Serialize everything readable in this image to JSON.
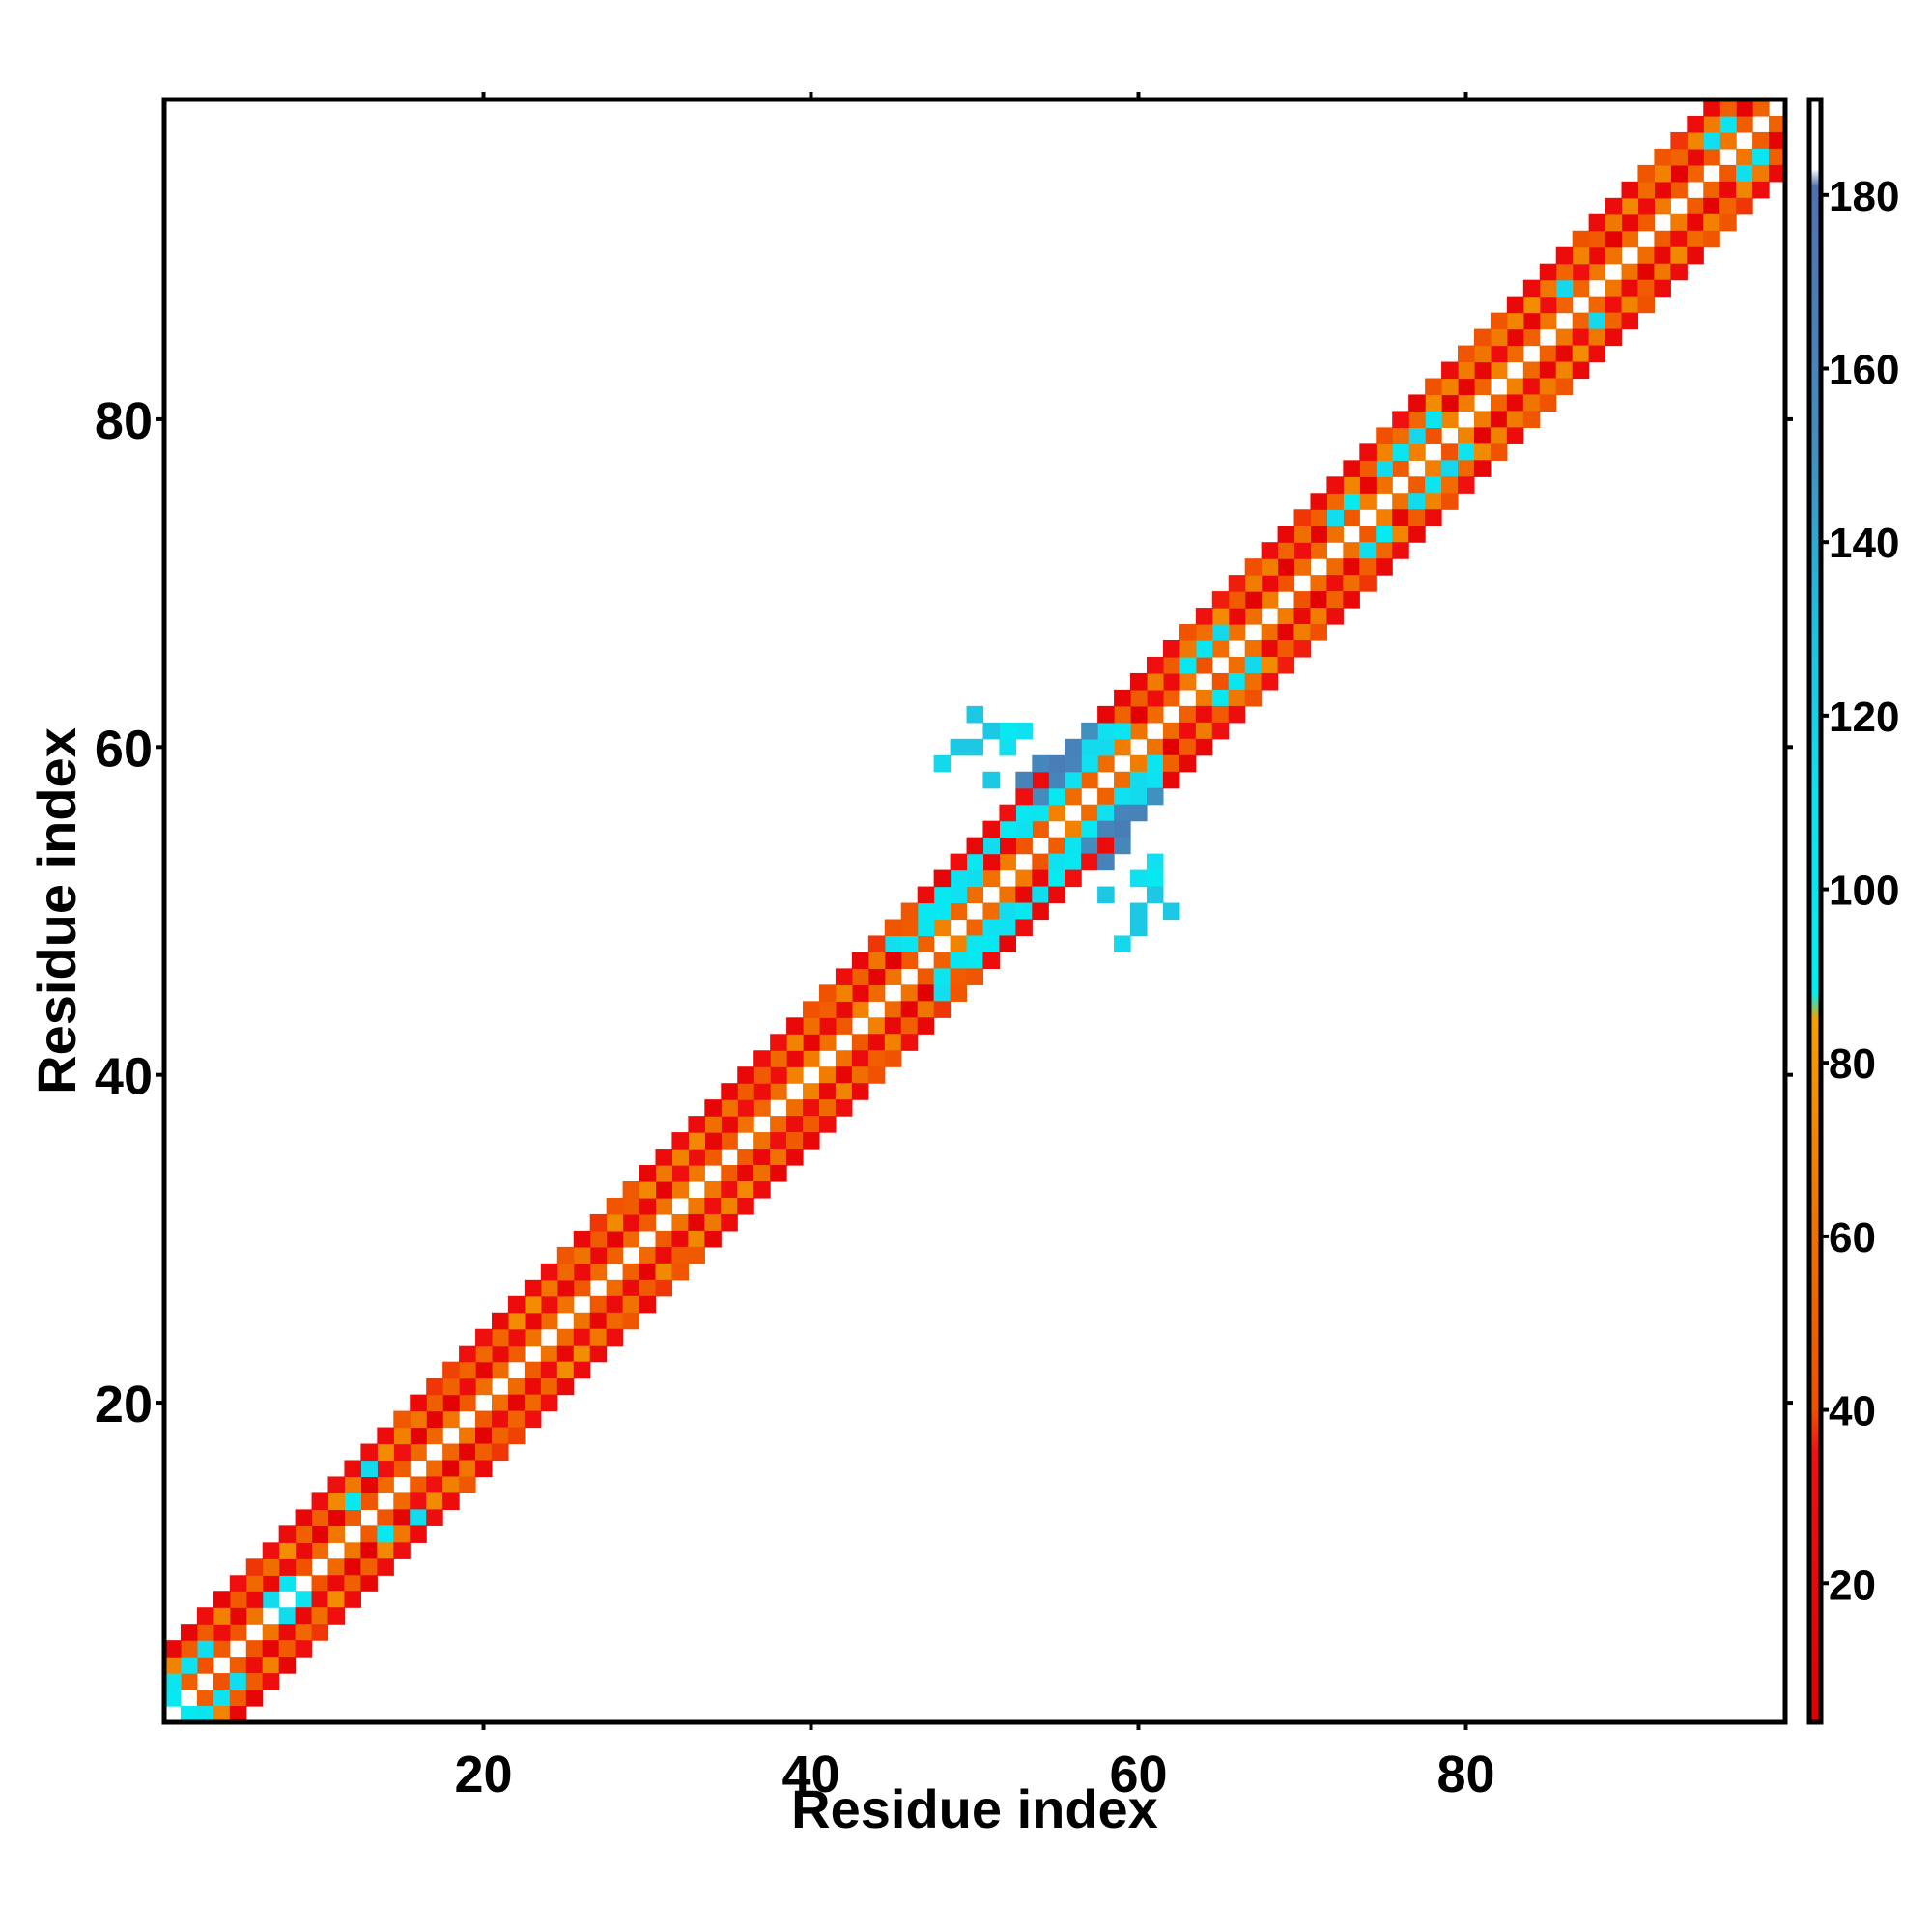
{
  "chart_data": {
    "type": "heatmap",
    "title": "",
    "xlabel": "Residue index",
    "ylabel": "Residue index",
    "xlim": [
      1,
      99
    ],
    "ylim": [
      1,
      99
    ],
    "xticks": [
      20,
      40,
      60,
      80
    ],
    "yticks": [
      20,
      40,
      60,
      80
    ],
    "grid": false,
    "legend": "colorbar-right",
    "colorbar": {
      "range": [
        4,
        191
      ],
      "ticks": [
        20,
        40,
        60,
        80,
        100,
        120,
        140,
        160,
        180
      ],
      "stops": [
        {
          "value": 4,
          "color": "#e00000"
        },
        {
          "value": 35,
          "color": "#f01010"
        },
        {
          "value": 40,
          "color": "#f05000"
        },
        {
          "value": 60,
          "color": "#f07000"
        },
        {
          "value": 85,
          "color": "#f5a000"
        },
        {
          "value": 88,
          "color": "#00f0f0"
        },
        {
          "value": 110,
          "color": "#10e0f0"
        },
        {
          "value": 130,
          "color": "#20c0e0"
        },
        {
          "value": 150,
          "color": "#4090c0"
        },
        {
          "value": 181,
          "color": "#5070b0"
        },
        {
          "value": 183,
          "color": "#ffffff"
        },
        {
          "value": 191,
          "color": "#ffffff"
        }
      ]
    },
    "description_of_values": "pairwise value matrix; diagonal band |i-j|<=4 filled, with extra cells near residues 46-62",
    "band_offsets": [
      {
        "offset": 1,
        "base": 55
      },
      {
        "offset": 2,
        "base": 20
      },
      {
        "offset": 3,
        "base": 60
      },
      {
        "offset": 4,
        "base": 30
      }
    ],
    "cyan_cells": [
      [
        1,
        2
      ],
      [
        1,
        3
      ],
      [
        2,
        4
      ],
      [
        3,
        5
      ],
      [
        7,
        8
      ],
      [
        8,
        9
      ],
      [
        12,
        14
      ],
      [
        13,
        16
      ],
      [
        48,
        50
      ],
      [
        48,
        51
      ],
      [
        49,
        51
      ],
      [
        49,
        52
      ],
      [
        50,
        52
      ],
      [
        50,
        53
      ],
      [
        51,
        54
      ],
      [
        52,
        55
      ],
      [
        53,
        55
      ],
      [
        53,
        56
      ],
      [
        54,
        56
      ],
      [
        54,
        57
      ],
      [
        55,
        57
      ],
      [
        55,
        58
      ],
      [
        56,
        58
      ],
      [
        56,
        59
      ],
      [
        57,
        59
      ],
      [
        57,
        60
      ],
      [
        58,
        60
      ],
      [
        58,
        61
      ],
      [
        59,
        61
      ],
      [
        52,
        61
      ],
      [
        46,
        48
      ],
      [
        47,
        49
      ],
      [
        47,
        50
      ],
      [
        45,
        48
      ],
      [
        63,
        65
      ],
      [
        64,
        66
      ],
      [
        65,
        67
      ],
      [
        72,
        74
      ],
      [
        73,
        75
      ],
      [
        75,
        77
      ],
      [
        76,
        78
      ],
      [
        77,
        79
      ],
      [
        78,
        80
      ],
      [
        86,
        88
      ],
      [
        95,
        97
      ],
      [
        96,
        98
      ]
    ],
    "blue_cells": [
      [
        54,
        57
      ],
      [
        55,
        58
      ],
      [
        55,
        59
      ],
      [
        56,
        59
      ],
      [
        56,
        60
      ],
      [
        57,
        61
      ],
      [
        53,
        58
      ],
      [
        54,
        59
      ]
    ],
    "extra_cells": [
      {
        "i": 51,
        "j": 61,
        "value": 125
      },
      {
        "i": 51,
        "j": 58,
        "value": 125
      },
      {
        "i": 50,
        "j": 60,
        "value": 125
      },
      {
        "i": 49,
        "j": 60,
        "value": 125
      },
      {
        "i": 50,
        "j": 62,
        "value": 125
      },
      {
        "i": 53,
        "j": 61,
        "value": 110
      },
      {
        "i": 52,
        "j": 60,
        "value": 110
      },
      {
        "i": 48,
        "j": 59,
        "value": 115
      }
    ]
  }
}
